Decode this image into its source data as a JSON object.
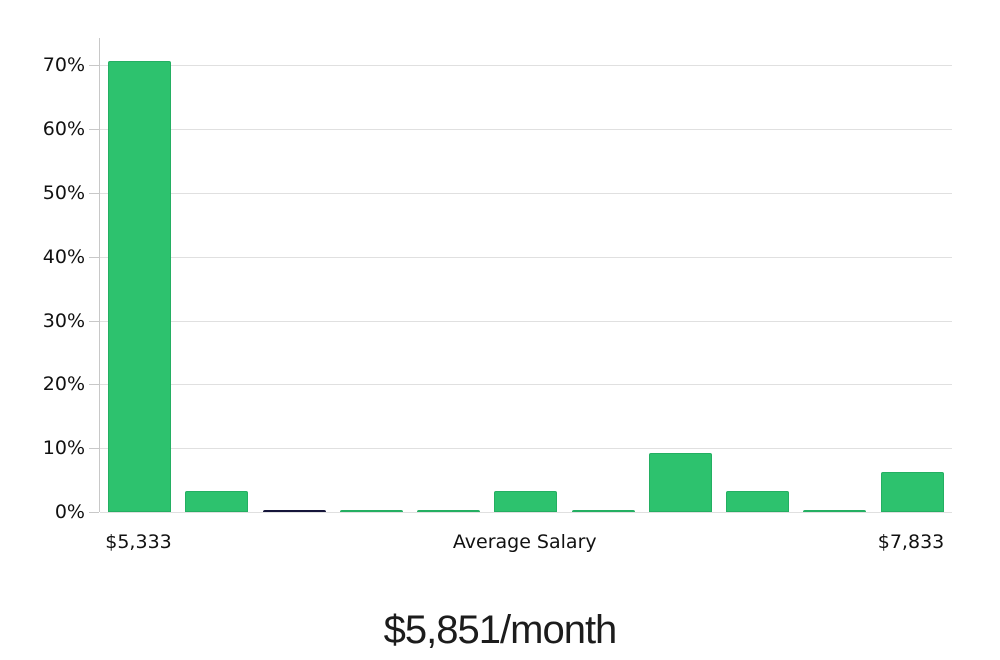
{
  "chart_data": {
    "type": "bar",
    "title": "$5,851/month",
    "xlabel": "",
    "ylabel": "",
    "unit": "%",
    "ylim": [
      0,
      74.3
    ],
    "grid": true,
    "legend": false,
    "colors": {
      "bar_green": "#2dc26e",
      "bar_highlight_dark": "#15153a",
      "gridline": "#e0e0e0",
      "axis": "#c8c8c8",
      "text": "#111111"
    },
    "y_ticks": [
      {
        "label": "70%",
        "value": 70
      },
      {
        "label": "60%",
        "value": 60
      },
      {
        "label": "50%",
        "value": 50
      },
      {
        "label": "40%",
        "value": 40
      },
      {
        "label": "30%",
        "value": 30
      },
      {
        "label": "20%",
        "value": 20
      },
      {
        "label": "10%",
        "value": 10
      },
      {
        "label": "0%",
        "value": 0
      }
    ],
    "bars": [
      {
        "value": 70.7,
        "color": "#2dc26e",
        "highlight": false
      },
      {
        "value": 3.3,
        "color": "#2dc26e",
        "highlight": false
      },
      {
        "value": 0.3,
        "color": "#15153a",
        "highlight": true
      },
      {
        "value": 0.35,
        "color": "#2dc26e",
        "highlight": false
      },
      {
        "value": 0.25,
        "color": "#2dc26e",
        "highlight": false
      },
      {
        "value": 3.3,
        "color": "#2dc26e",
        "highlight": false
      },
      {
        "value": 0.25,
        "color": "#2dc26e",
        "highlight": false
      },
      {
        "value": 9.3,
        "color": "#2dc26e",
        "highlight": false
      },
      {
        "value": 3.3,
        "color": "#2dc26e",
        "highlight": false
      },
      {
        "value": 0.25,
        "color": "#2dc26e",
        "highlight": false
      },
      {
        "value": 6.3,
        "color": "#2dc26e",
        "highlight": false
      }
    ],
    "x_axis_labels": [
      {
        "text": "$5,333",
        "anchor_bar": 0
      },
      {
        "text": "Average Salary",
        "anchor_bar": 5
      },
      {
        "text": "$7,833",
        "anchor_bar": 10
      }
    ]
  }
}
